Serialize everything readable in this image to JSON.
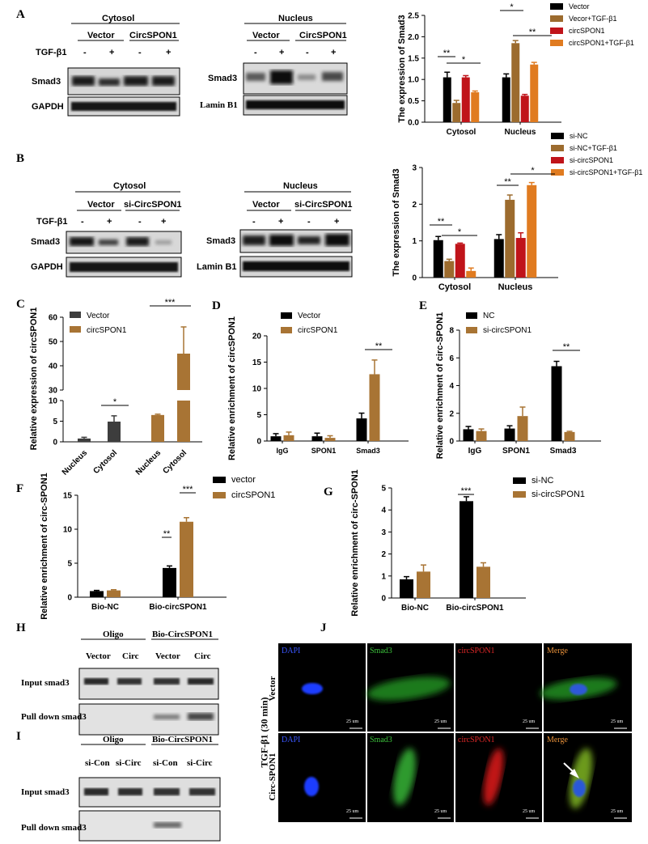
{
  "panels": {
    "A": {
      "label": "A",
      "blots": [
        {
          "title": "Cytosol",
          "groups": [
            "Vector",
            "CircSPON1"
          ],
          "treatment_label": "TGF-β1",
          "treatment": [
            "-",
            "+",
            "-",
            "+"
          ],
          "rows": [
            "Smad3",
            "GAPDH"
          ]
        },
        {
          "title": "Nucleus",
          "groups": [
            "Vector",
            "CircSPON1"
          ],
          "treatment": [
            "-",
            "+",
            "-",
            "+"
          ],
          "rows": [
            "Smad3",
            "Lamin B1"
          ]
        }
      ]
    },
    "B": {
      "label": "B",
      "blots": [
        {
          "title": "Cytosol",
          "groups": [
            "Vector",
            "si-CircSPON1"
          ],
          "treatment_label": "TGF-β1",
          "treatment": [
            "-",
            "+",
            "-",
            "+"
          ],
          "rows": [
            "Smad3",
            "GAPDH"
          ]
        },
        {
          "title": "Nucleus",
          "groups": [
            "Vector",
            "si-CircSPON1"
          ],
          "treatment": [
            "-",
            "+",
            "-",
            "+"
          ],
          "rows": [
            "Smad3",
            "Lamin B1"
          ]
        }
      ]
    },
    "C": {
      "label": "C"
    },
    "D": {
      "label": "D"
    },
    "E": {
      "label": "E"
    },
    "F": {
      "label": "F"
    },
    "G": {
      "label": "G"
    },
    "H": {
      "label": "H",
      "groups": [
        "Oligo",
        "Bio-CircSPON1"
      ],
      "lanes": [
        "Vector",
        "Circ",
        "Vector",
        "Circ"
      ],
      "rows": [
        "Input smad3",
        "Pull down smad3"
      ]
    },
    "I": {
      "label": "I",
      "groups": [
        "Oligo",
        "Bio-CircSPON1"
      ],
      "lanes": [
        "si-Con",
        "si-Circ",
        "si-Con",
        "si-Circ"
      ],
      "rows": [
        "Input smad3",
        "Pull down smad3"
      ]
    },
    "J": {
      "label": "J",
      "side_label": "TGF-β1 (30 min)",
      "channels": [
        "DAPI",
        "Smad3",
        "circSPON1",
        "Merge"
      ],
      "rows": [
        "Vector",
        "Circ-SPON1"
      ],
      "scale_bar": "25 um"
    }
  },
  "chart_data": [
    {
      "id": "A",
      "type": "bar",
      "ylabel": "The expression of Smad3",
      "ylim": [
        0,
        2.5
      ],
      "yticks": [
        "0.0",
        "0.5",
        "1.0",
        "1.5",
        "2.0",
        "2.5"
      ],
      "categories": [
        "Cytosol",
        "Nucleus"
      ],
      "series": [
        {
          "name": "Vector",
          "color": "#000000",
          "values": [
            1.05,
            1.05
          ],
          "errors": [
            0.12,
            0.08
          ]
        },
        {
          "name": "Vecor+TGF-β1",
          "color": "#9c6b2e",
          "values": [
            0.45,
            1.85
          ],
          "errors": [
            0.06,
            0.06
          ]
        },
        {
          "name": "circSPON1",
          "color": "#c0141a",
          "values": [
            1.05,
            0.62
          ],
          "errors": [
            0.04,
            0.03
          ]
        },
        {
          "name": "circSPON1+TGF-β1",
          "color": "#e07b20",
          "values": [
            0.7,
            1.35
          ],
          "errors": [
            0.03,
            0.05
          ]
        }
      ],
      "significance": [
        "**",
        "*",
        "*",
        "**"
      ]
    },
    {
      "id": "B",
      "type": "bar",
      "ylabel": "The expression of Smad3",
      "ylim": [
        0,
        3
      ],
      "yticks": [
        "0",
        "1",
        "2",
        "3"
      ],
      "categories": [
        "Cytosol",
        "Nucleus"
      ],
      "series": [
        {
          "name": "si-NC",
          "color": "#000000",
          "values": [
            1.02,
            1.05
          ],
          "errors": [
            0.1,
            0.12
          ]
        },
        {
          "name": "si-NC+TGF-β1",
          "color": "#9c6b2e",
          "values": [
            0.45,
            2.12
          ],
          "errors": [
            0.05,
            0.13
          ]
        },
        {
          "name": "si-circSPON1",
          "color": "#c0141a",
          "values": [
            0.92,
            1.08
          ],
          "errors": [
            0.02,
            0.14
          ]
        },
        {
          "name": "si-circSPON1+TGF-β1",
          "color": "#e07b20",
          "values": [
            0.18,
            2.52
          ],
          "errors": [
            0.08,
            0.07
          ]
        }
      ],
      "significance": [
        "**",
        "*",
        "**",
        "*"
      ]
    },
    {
      "id": "C",
      "type": "bar",
      "ylabel": "Relative expression of circSPON1",
      "yticks": [
        "0",
        "5",
        "10",
        "30",
        "40",
        "50",
        "60"
      ],
      "categories": [
        "Nucleus",
        "Cytosol",
        "Nucleus",
        "Cytosol"
      ],
      "series": [
        {
          "name": "Vector",
          "color": "#3d3d3d",
          "values": [
            0.8,
            4.9,
            null,
            null
          ],
          "errors": [
            0.3,
            1.4,
            null,
            null
          ]
        },
        {
          "name": "circSPON1",
          "color": "#a87434",
          "values": [
            null,
            null,
            6.5,
            45
          ],
          "errors": [
            null,
            null,
            0.2,
            11
          ]
        }
      ],
      "significance": [
        "*",
        "***"
      ]
    },
    {
      "id": "D",
      "type": "bar",
      "ylabel": "Relative enrichment of circSPON1",
      "ylim": [
        0,
        20
      ],
      "yticks": [
        "0",
        "5",
        "10",
        "15",
        "20"
      ],
      "categories": [
        "IgG",
        "SPON1",
        "Smad3"
      ],
      "series": [
        {
          "name": "Vector",
          "color": "#000000",
          "values": [
            0.9,
            0.9,
            4.3
          ],
          "errors": [
            0.5,
            0.6,
            1.0
          ]
        },
        {
          "name": "circSPON1",
          "color": "#a87434",
          "values": [
            1.1,
            0.6,
            12.7
          ],
          "errors": [
            0.6,
            0.4,
            2.7
          ]
        }
      ],
      "significance": [
        "**"
      ]
    },
    {
      "id": "E",
      "type": "bar",
      "ylabel": "Relative enrichment of circ-SPON1",
      "ylim": [
        0,
        8
      ],
      "yticks": [
        "0",
        "2",
        "4",
        "6",
        "8"
      ],
      "categories": [
        "IgG",
        "SPON1",
        "Smad3"
      ],
      "series": [
        {
          "name": "NC",
          "color": "#000000",
          "values": [
            0.85,
            0.9,
            5.4
          ],
          "errors": [
            0.2,
            0.2,
            0.35
          ]
        },
        {
          "name": "si-circSPON1",
          "color": "#a87434",
          "values": [
            0.72,
            1.8,
            0.65
          ],
          "errors": [
            0.15,
            0.65,
            0.05
          ]
        }
      ],
      "significance": [
        "**"
      ]
    },
    {
      "id": "F",
      "type": "bar",
      "ylabel": "Relative enrichment of circ-SPON1",
      "ylim": [
        0,
        15
      ],
      "yticks": [
        "0",
        "5",
        "10",
        "15"
      ],
      "categories": [
        "Bio-NC",
        "Bio-circSPON1"
      ],
      "series": [
        {
          "name": "vector",
          "color": "#000000",
          "values": [
            0.9,
            4.3
          ],
          "errors": [
            0.1,
            0.3
          ]
        },
        {
          "name": "circSPON1",
          "color": "#a87434",
          "values": [
            1.0,
            11.1
          ],
          "errors": [
            0.1,
            0.6
          ]
        }
      ],
      "significance": [
        "**",
        "***"
      ]
    },
    {
      "id": "G",
      "type": "bar",
      "ylabel": "Relative enrichment of circ-SPON1",
      "ylim": [
        0,
        5
      ],
      "yticks": [
        "0",
        "1",
        "2",
        "3",
        "4",
        "5"
      ],
      "categories": [
        "Bio-NC",
        "Bio-circSPON1"
      ],
      "series": [
        {
          "name": "si-NC",
          "color": "#000000",
          "values": [
            0.85,
            4.4
          ],
          "errors": [
            0.12,
            0.2
          ]
        },
        {
          "name": "si-circSPON1",
          "color": "#a87434",
          "values": [
            1.2,
            1.42
          ],
          "errors": [
            0.3,
            0.18
          ]
        }
      ],
      "significance": [
        "***"
      ]
    }
  ]
}
